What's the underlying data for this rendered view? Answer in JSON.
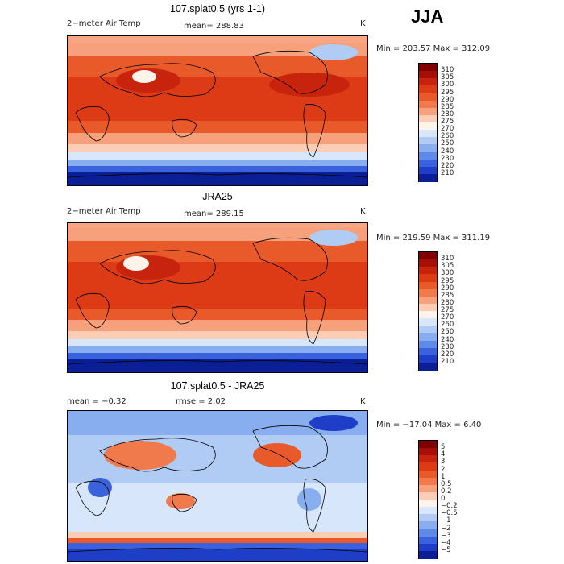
{
  "season": "JJA",
  "panels": [
    {
      "title": "107.splat0.5 (yrs 1-1)",
      "left_label": "2−meter Air Temp",
      "center_label": "mean= 288.83",
      "units": "K",
      "minmax": "Min = 203.57 Max = 312.09"
    },
    {
      "title": "JRA25",
      "left_label": "2−meter Air Temp",
      "center_label": "mean= 289.15",
      "units": "K",
      "minmax": "Min = 219.59 Max = 311.19"
    },
    {
      "title": "107.splat0.5 - JRA25",
      "left_label": "mean =   −0.32",
      "center_label": "rmse =    2.02",
      "units": "K",
      "minmax": "Min = −17.04 Max =    6.40"
    }
  ],
  "colorbars": {
    "absolute": {
      "levels": [
        "310",
        "305",
        "300",
        "295",
        "290",
        "285",
        "280",
        "275",
        "270",
        "260",
        "250",
        "240",
        "230",
        "220",
        "210"
      ],
      "colors": [
        "#7f0000",
        "#a50f06",
        "#c8230c",
        "#dc3b16",
        "#e85a2a",
        "#f07a4c",
        "#f6a07c",
        "#fbcdb4",
        "#fff3ea",
        "#d8e6fb",
        "#b0ccf5",
        "#88aef0",
        "#5e8ae8",
        "#3a62dc",
        "#1f3ec8",
        "#0a1f96"
      ]
    },
    "difference": {
      "levels": [
        "5",
        "4",
        "3",
        "2",
        "1",
        "0.5",
        "0.2",
        "0",
        "−0.2",
        "−0.5",
        "−1",
        "−2",
        "−3",
        "−4",
        "−5"
      ],
      "colors": [
        "#7f0000",
        "#a50f06",
        "#c8230c",
        "#dc3b16",
        "#e85a2a",
        "#f07a4c",
        "#f6a07c",
        "#fbcdb4",
        "#fff3ea",
        "#d8e6fb",
        "#b0ccf5",
        "#88aef0",
        "#5e8ae8",
        "#3a62dc",
        "#1f3ec8",
        "#0a1f96"
      ]
    }
  }
}
